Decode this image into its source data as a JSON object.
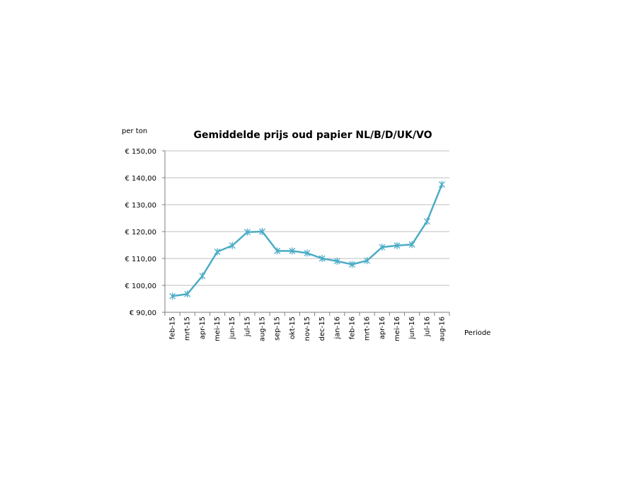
{
  "chart_data": {
    "type": "line",
    "title": "Gemiddelde prijs oud papier NL/B/D/UK/VO",
    "ylabel": "per ton",
    "xlabel": "Periode",
    "categories": [
      "feb-15",
      "mrt-15",
      "apr-15",
      "mei-15",
      "jun-15",
      "jul-15",
      "aug-15",
      "sep-15",
      "okt-15",
      "nov-15",
      "dec-15",
      "jan-16",
      "feb-16",
      "mrt-16",
      "apr-16",
      "mei-16",
      "jun-16",
      "jul-16",
      "aug-16"
    ],
    "series": [
      {
        "name": "Gemiddelde prijs",
        "values": [
          96.0,
          96.8,
          103.5,
          112.5,
          114.8,
          119.8,
          120.0,
          112.8,
          112.8,
          112.0,
          110.0,
          109.0,
          107.8,
          109.2,
          114.2,
          114.8,
          115.2,
          123.8,
          137.5
        ],
        "color": "#4bacc6"
      }
    ],
    "ylim": [
      90,
      150
    ],
    "yticks": [
      90,
      100,
      110,
      120,
      130,
      140,
      150
    ],
    "ytick_labels": [
      "€ 90,00",
      "€ 100,00",
      "€ 110,00",
      "€ 120,00",
      "€ 130,00",
      "€ 140,00",
      "€ 150,00"
    ],
    "grid": true
  }
}
